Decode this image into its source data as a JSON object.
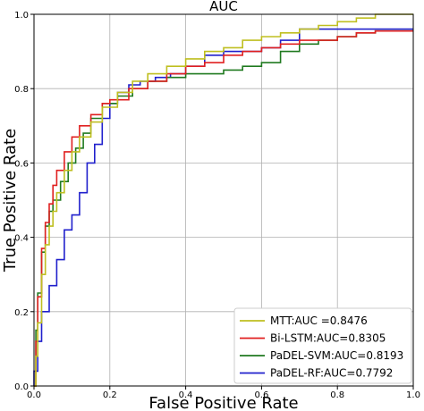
{
  "chart_data": {
    "type": "line",
    "title": "AUC",
    "xlabel": "False Positive Rate",
    "ylabel": "True Positive Rate",
    "xlim": [
      0.0,
      1.0
    ],
    "ylim": [
      0.0,
      1.0
    ],
    "xticks": [
      0.0,
      0.2,
      0.4,
      0.6,
      0.8,
      1.0
    ],
    "yticks": [
      0.0,
      0.2,
      0.4,
      0.6,
      0.8,
      1.0
    ],
    "xtick_labels": [
      "0.0",
      "0.2",
      "0.4",
      "0.6",
      "0.8",
      "1.0"
    ],
    "ytick_labels": [
      "0.0",
      "0.2",
      "0.4",
      "0.6",
      "0.8",
      "1.0"
    ],
    "grid": true,
    "legend_position": "bottom-right",
    "series": [
      {
        "name": "MTT:AUC =0.8476",
        "color": "#bfbf20",
        "x": [
          0.0,
          0.005,
          0.01,
          0.02,
          0.03,
          0.04,
          0.05,
          0.06,
          0.08,
          0.1,
          0.12,
          0.15,
          0.18,
          0.22,
          0.26,
          0.3,
          0.35,
          0.4,
          0.45,
          0.5,
          0.55,
          0.6,
          0.65,
          0.7,
          0.75,
          0.8,
          0.85,
          0.9,
          0.95,
          1.0
        ],
        "y": [
          0.0,
          0.08,
          0.17,
          0.3,
          0.38,
          0.43,
          0.47,
          0.52,
          0.58,
          0.63,
          0.67,
          0.71,
          0.75,
          0.79,
          0.82,
          0.84,
          0.86,
          0.88,
          0.9,
          0.91,
          0.93,
          0.94,
          0.95,
          0.96,
          0.97,
          0.98,
          0.99,
          1.0,
          1.0,
          1.0
        ]
      },
      {
        "name": "Bi-LSTM:AUC=0.8305",
        "color": "#e02020",
        "x": [
          0.0,
          0.005,
          0.01,
          0.02,
          0.03,
          0.04,
          0.05,
          0.06,
          0.08,
          0.1,
          0.12,
          0.15,
          0.18,
          0.2,
          0.25,
          0.3,
          0.35,
          0.4,
          0.45,
          0.5,
          0.55,
          0.6,
          0.65,
          0.7,
          0.75,
          0.8,
          0.85,
          0.9,
          0.95,
          1.0
        ],
        "y": [
          0.0,
          0.12,
          0.24,
          0.37,
          0.44,
          0.49,
          0.54,
          0.58,
          0.63,
          0.67,
          0.7,
          0.73,
          0.76,
          0.77,
          0.8,
          0.82,
          0.84,
          0.86,
          0.87,
          0.89,
          0.9,
          0.91,
          0.92,
          0.93,
          0.93,
          0.94,
          0.95,
          0.955,
          0.955,
          0.955
        ]
      },
      {
        "name": "PaDEL-SVM:AUC=0.8193",
        "color": "#207a20",
        "x": [
          0.0,
          0.005,
          0.01,
          0.02,
          0.03,
          0.04,
          0.05,
          0.07,
          0.09,
          0.11,
          0.13,
          0.15,
          0.18,
          0.22,
          0.26,
          0.3,
          0.35,
          0.4,
          0.45,
          0.5,
          0.55,
          0.6,
          0.65,
          0.7,
          0.75,
          0.8,
          0.85,
          0.9,
          0.95,
          1.0
        ],
        "y": [
          0.0,
          0.15,
          0.25,
          0.36,
          0.43,
          0.47,
          0.5,
          0.55,
          0.6,
          0.64,
          0.68,
          0.72,
          0.76,
          0.78,
          0.8,
          0.82,
          0.83,
          0.84,
          0.84,
          0.85,
          0.86,
          0.87,
          0.9,
          0.92,
          0.93,
          0.94,
          0.95,
          0.955,
          0.955,
          0.955
        ]
      },
      {
        "name": "PaDEL-RF:AUC=0.7792",
        "color": "#2020cc",
        "x": [
          0.0,
          0.0,
          0.01,
          0.02,
          0.04,
          0.06,
          0.08,
          0.1,
          0.12,
          0.14,
          0.16,
          0.18,
          0.2,
          0.22,
          0.25,
          0.28,
          0.32,
          0.36,
          0.4,
          0.45,
          0.5,
          0.55,
          0.6,
          0.65,
          0.7,
          0.75,
          0.8,
          0.85,
          0.9,
          0.95,
          1.0
        ],
        "y": [
          0.0,
          0.04,
          0.12,
          0.2,
          0.27,
          0.34,
          0.42,
          0.46,
          0.52,
          0.6,
          0.65,
          0.72,
          0.76,
          0.79,
          0.81,
          0.82,
          0.83,
          0.84,
          0.86,
          0.89,
          0.9,
          0.9,
          0.91,
          0.93,
          0.96,
          0.96,
          0.96,
          0.96,
          0.96,
          0.96,
          0.96
        ]
      }
    ]
  }
}
